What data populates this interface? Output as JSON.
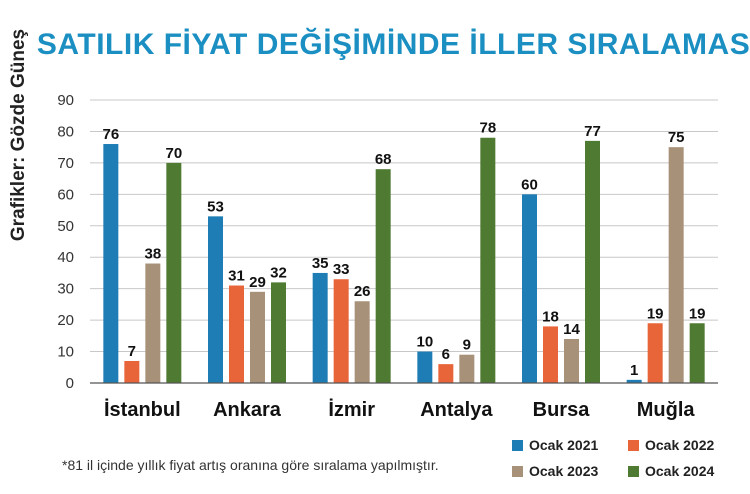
{
  "credit": "Grafikler: Gözde Güneş",
  "footnote": "*81 il içinde yıllık fiyat artış oranına göre sıralama yapılmıştır.",
  "colors": {
    "title": "#1b8fc2",
    "series": [
      "#1f7db5",
      "#e8653a",
      "#a89179",
      "#4f7a31"
    ],
    "grid": "#c8c8c8"
  },
  "chart_data": {
    "type": "bar",
    "title": "SATILIK FİYAT DEĞİŞİMİNDE İLLER SIRALAMASI",
    "xlabel": "",
    "ylabel": "",
    "ylim": [
      0,
      90
    ],
    "yticks": [
      0,
      10,
      20,
      30,
      40,
      50,
      60,
      70,
      80,
      90
    ],
    "grid": true,
    "legend_position": "bottom-right",
    "categories": [
      "İstanbul",
      "Ankara",
      "İzmir",
      "Antalya",
      "Bursa",
      "Muğla"
    ],
    "series": [
      {
        "name": "Ocak 2021",
        "values": [
          76,
          53,
          35,
          10,
          60,
          1
        ]
      },
      {
        "name": "Ocak 2022",
        "values": [
          7,
          31,
          33,
          6,
          18,
          19
        ]
      },
      {
        "name": "Ocak 2023",
        "values": [
          38,
          29,
          26,
          9,
          14,
          75
        ]
      },
      {
        "name": "Ocak 2024",
        "values": [
          70,
          32,
          68,
          78,
          77,
          19
        ]
      }
    ]
  }
}
